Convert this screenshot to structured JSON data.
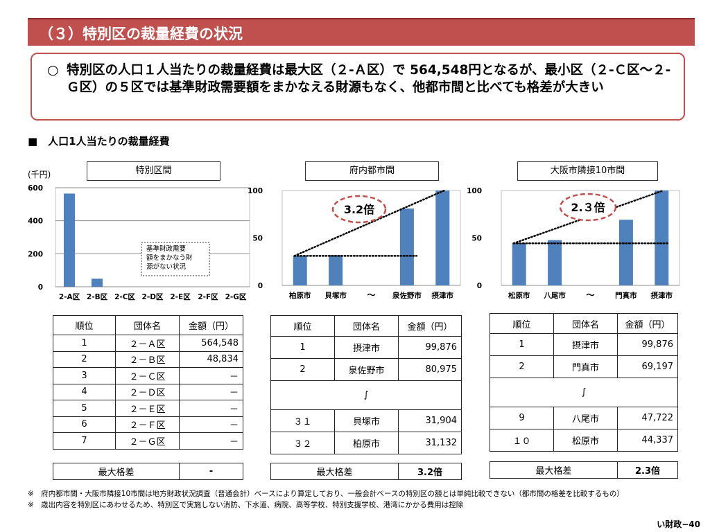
{
  "title": "（３）特別区の裁量経費の状況",
  "summary": {
    "bullet": "○",
    "text": "特別区の人口１人当たりの裁量経費は最大区（２-Ａ区）で 564,548円となるが、最小区（２-Ｃ区～２-Ｇ区）の５区では基準財政需要額をまかなえる財源もなく、他都市間と比べても格差が大きい"
  },
  "section_heading": "■　人口1人当たりの裁量経費",
  "unit_label": "(千円)",
  "charts": {
    "left": {
      "title": "特別区間",
      "annotation_lines": [
        "基準財政需要",
        "額をまかなう財",
        "源がない状況"
      ]
    },
    "middle": {
      "title": "府内都市間",
      "callout": "3.2倍"
    },
    "right": {
      "title": "大阪市隣接10市間",
      "callout": "2.３倍"
    }
  },
  "chart_data": [
    {
      "type": "bar",
      "title": "特別区間",
      "categories": [
        "2-A区",
        "2-B区",
        "2-C区",
        "2-D区",
        "2-E区",
        "2-F区",
        "2-G区"
      ],
      "values": [
        564.548,
        48.834,
        0,
        0,
        0,
        0,
        0
      ],
      "ylabel": "(千円)",
      "ylim": [
        0,
        600
      ],
      "yticks": [
        0,
        200,
        400,
        600
      ],
      "grid": true,
      "color": "#4f81bd"
    },
    {
      "type": "bar",
      "title": "府内都市間",
      "categories": [
        "柏原市",
        "貝塚市",
        "～",
        "泉佐野市",
        "摂津市"
      ],
      "values": [
        31.132,
        31.904,
        null,
        80.975,
        99.876
      ],
      "ylim": [
        0,
        100
      ],
      "yticks": [
        0,
        50,
        100
      ],
      "grid": false,
      "color": "#4f81bd"
    },
    {
      "type": "bar",
      "title": "大阪市隣接10市間",
      "categories": [
        "松原市",
        "八尾市",
        "～",
        "門真市",
        "摂津市"
      ],
      "values": [
        44.337,
        47.722,
        null,
        69.197,
        99.876
      ],
      "ylim": [
        0,
        100
      ],
      "yticks": [
        0,
        50,
        100
      ],
      "grid": false,
      "color": "#4f81bd"
    }
  ],
  "tables": {
    "left": {
      "headers": [
        "順位",
        "団体名",
        "金額（円）"
      ],
      "rows": [
        [
          "1",
          "２－Ａ区",
          "564,548"
        ],
        [
          "2",
          "２－Ｂ区",
          "48,834"
        ],
        [
          "3",
          "２－Ｃ区",
          "－"
        ],
        [
          "4",
          "２－Ｄ区",
          "－"
        ],
        [
          "5",
          "２－Ｅ区",
          "－"
        ],
        [
          "6",
          "２－Ｆ区",
          "－"
        ],
        [
          "7",
          "２－Ｇ区",
          "－"
        ]
      ],
      "max_label": "最大格差",
      "max_value": "-"
    },
    "middle": {
      "headers": [
        "順位",
        "団体名",
        "金額（円）"
      ],
      "rows": [
        [
          "1",
          "摂津市",
          "99,876"
        ],
        [
          "2",
          "泉佐野市",
          "80,975"
        ],
        [
          "３１",
          "貝塚市",
          "31,904"
        ],
        [
          "３２",
          "柏原市",
          "31,132"
        ]
      ],
      "ellipsis": "∫",
      "max_label": "最大格差",
      "max_value": "3.2倍"
    },
    "right": {
      "headers": [
        "順位",
        "団体名",
        "金額（円）"
      ],
      "rows": [
        [
          "1",
          "摂津市",
          "99,876"
        ],
        [
          "2",
          "門真市",
          "69,197"
        ],
        [
          "9",
          "八尾市",
          "47,722"
        ],
        [
          "１０",
          "松原市",
          "44,337"
        ]
      ],
      "ellipsis": "∫",
      "max_label": "最大格差",
      "max_value": "2.3倍"
    }
  },
  "notes": [
    "※　府内都市間・大阪市隣接10市間は地方財政状況調査（普通会計）ベースにより算定しており、一般会計ベースの特別区の額とは単純比較できない（都市間の格差を比較するもの）",
    "※　歳出内容を特別区にあわせるため、特別区で実施しない消防、下水道、病院、高等学校、特別支援学校、港湾にかかる費用は控除"
  ],
  "page_number": "い財政−40"
}
